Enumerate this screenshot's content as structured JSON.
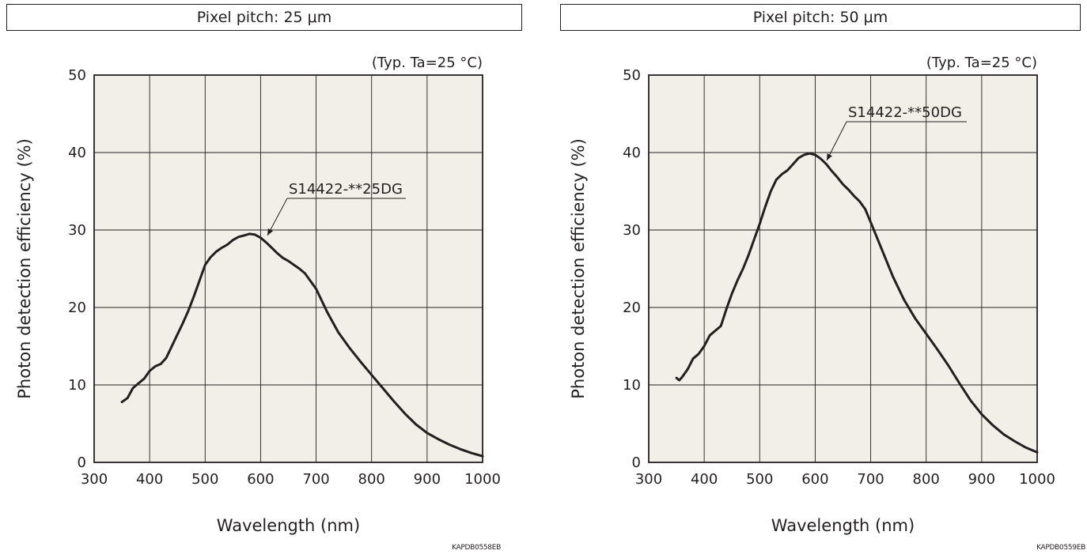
{
  "chart_data": [
    {
      "type": "line",
      "title": "Pixel pitch: 25 μm",
      "condition": "(Typ. Ta=25 °C)",
      "xlabel": "Wavelength (nm)",
      "ylabel": "Photon detection efficiency (%)",
      "xlim": [
        300,
        1000
      ],
      "ylim": [
        0,
        50
      ],
      "x_ticks": [
        "300",
        "400",
        "500",
        "600",
        "700",
        "800",
        "900",
        "1000"
      ],
      "y_ticks": [
        "0",
        "10",
        "20",
        "30",
        "40",
        "50"
      ],
      "grid": true,
      "annotation": "S14422-**25DG",
      "code": "KAPDB0558EB",
      "series": [
        {
          "name": "S14422-**25DG",
          "x": [
            350,
            360,
            370,
            380,
            390,
            400,
            410,
            420,
            430,
            440,
            450,
            460,
            470,
            480,
            490,
            500,
            510,
            520,
            530,
            540,
            550,
            560,
            570,
            580,
            590,
            600,
            610,
            620,
            630,
            640,
            650,
            660,
            670,
            680,
            690,
            700,
            720,
            740,
            760,
            780,
            800,
            820,
            840,
            860,
            880,
            900,
            920,
            940,
            960,
            980,
            1000
          ],
          "y": [
            7.8,
            8.3,
            9.6,
            10.2,
            10.8,
            11.8,
            12.4,
            12.7,
            13.5,
            15.0,
            16.5,
            18.0,
            19.6,
            21.5,
            23.5,
            25.5,
            26.5,
            27.2,
            27.7,
            28.1,
            28.7,
            29.1,
            29.3,
            29.5,
            29.4,
            29.0,
            28.4,
            27.7,
            27.0,
            26.4,
            26.0,
            25.5,
            25.0,
            24.4,
            23.4,
            22.4,
            19.4,
            16.8,
            14.8,
            13.0,
            11.3,
            9.6,
            7.9,
            6.3,
            4.9,
            3.8,
            3.0,
            2.3,
            1.7,
            1.2,
            0.8
          ]
        }
      ]
    },
    {
      "type": "line",
      "title": "Pixel pitch: 50 μm",
      "condition": "(Typ. Ta=25 °C)",
      "xlabel": "Wavelength (nm)",
      "ylabel": "Photon detection efficiency (%)",
      "xlim": [
        300,
        1000
      ],
      "ylim": [
        0,
        50
      ],
      "x_ticks": [
        "300",
        "400",
        "500",
        "600",
        "700",
        "800",
        "900",
        "1000"
      ],
      "y_ticks": [
        "0",
        "10",
        "20",
        "30",
        "40",
        "50"
      ],
      "grid": true,
      "annotation": "S14422-**50DG",
      "code": "KAPDB0559EB",
      "series": [
        {
          "name": "S14422-**50DG",
          "x": [
            350,
            355,
            360,
            370,
            380,
            390,
            400,
            410,
            420,
            430,
            440,
            450,
            460,
            470,
            480,
            490,
            500,
            510,
            520,
            530,
            540,
            550,
            560,
            570,
            580,
            590,
            600,
            610,
            620,
            630,
            640,
            650,
            660,
            670,
            680,
            690,
            700,
            720,
            740,
            760,
            780,
            800,
            820,
            840,
            860,
            880,
            900,
            920,
            940,
            960,
            980,
            1000
          ],
          "y": [
            10.9,
            10.6,
            11.0,
            12.0,
            13.4,
            14.0,
            15.0,
            16.4,
            17.0,
            17.6,
            19.8,
            21.8,
            23.5,
            25.0,
            26.8,
            28.8,
            30.8,
            33.0,
            35.0,
            36.5,
            37.2,
            37.7,
            38.5,
            39.3,
            39.7,
            39.9,
            39.7,
            39.2,
            38.5,
            37.6,
            36.8,
            35.9,
            35.2,
            34.4,
            33.7,
            32.7,
            31.0,
            27.5,
            24.0,
            21.0,
            18.6,
            16.6,
            14.6,
            12.5,
            10.2,
            8.0,
            6.2,
            4.8,
            3.6,
            2.7,
            1.9,
            1.3
          ]
        }
      ]
    }
  ]
}
